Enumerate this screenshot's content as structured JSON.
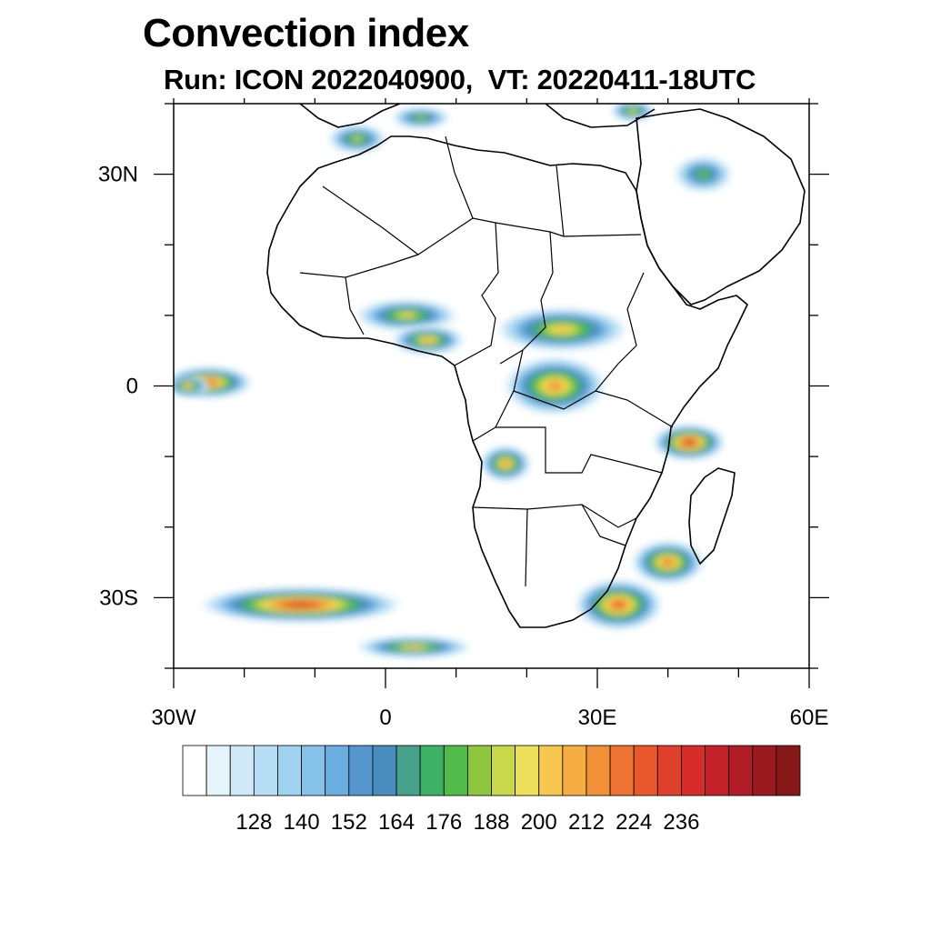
{
  "title": "Convection index",
  "subtitle": "Run: ICON 2022040900,  VT: 20220411-18UTC",
  "axes": {
    "lon_labels": [
      {
        "lon": -30,
        "text": "30W"
      },
      {
        "lon": 0,
        "text": "0"
      },
      {
        "lon": 30,
        "text": "30E"
      },
      {
        "lon": 60,
        "text": "60E"
      }
    ],
    "lat_labels": [
      {
        "lat": 30,
        "text": "30N"
      },
      {
        "lat": 0,
        "text": "0"
      },
      {
        "lat": -30,
        "text": "30S"
      }
    ],
    "lon_range": [
      -30,
      60
    ],
    "lat_range": [
      -40,
      40
    ]
  },
  "colorbar": {
    "colors": [
      "#ffffff",
      "#e6f4fc",
      "#cfe9f8",
      "#b7def4",
      "#9fd3f0",
      "#86c2e8",
      "#6aaedf",
      "#5596cf",
      "#4a8cbd",
      "#46a08a",
      "#3db266",
      "#52bb4c",
      "#8ec640",
      "#c8d84a",
      "#ede05a",
      "#f7c850",
      "#f6ad44",
      "#f29038",
      "#ee7231",
      "#e8582c",
      "#e0412a",
      "#d62d2b",
      "#c4222a",
      "#b01d26",
      "#9a1a20",
      "#861818"
    ],
    "labels": [
      "128",
      "140",
      "152",
      "164",
      "176",
      "188",
      "200",
      "212",
      "224",
      "236"
    ]
  },
  "convection_cells": [
    {
      "name": "atlantic-equatorial",
      "lon": -25,
      "lat": 0.5,
      "rx": 6,
      "ry": 2.2,
      "level": 20
    },
    {
      "name": "atlantic-equatorial-west",
      "lon": -28,
      "lat": 0,
      "rx": 3,
      "ry": 1.5,
      "level": 17
    },
    {
      "name": "gulf-of-guinea",
      "lon": 3,
      "lat": 10,
      "rx": 7,
      "ry": 2.2,
      "level": 15
    },
    {
      "name": "west-africa-sahel",
      "lon": 6,
      "lat": 6.5,
      "rx": 5,
      "ry": 2,
      "level": 17
    },
    {
      "name": "central-africa-north",
      "lon": 25,
      "lat": 8,
      "rx": 9,
      "ry": 3,
      "level": 16
    },
    {
      "name": "congo-basin",
      "lon": 24,
      "lat": 0,
      "rx": 7,
      "ry": 4,
      "level": 18
    },
    {
      "name": "angola-highlands",
      "lon": 17,
      "lat": -11,
      "rx": 3.5,
      "ry": 2.5,
      "level": 18
    },
    {
      "name": "east-africa-indian-ocean",
      "lon": 43,
      "lat": -8,
      "rx": 5,
      "ry": 2.5,
      "level": 22
    },
    {
      "name": "mozambique-channel",
      "lon": 40,
      "lat": -25,
      "rx": 5,
      "ry": 3,
      "level": 19
    },
    {
      "name": "south-africa-east",
      "lon": 33,
      "lat": -31,
      "rx": 6,
      "ry": 3.5,
      "level": 20
    },
    {
      "name": "south-atlantic-band",
      "lon": -12,
      "lat": -31,
      "rx": 14,
      "ry": 2.5,
      "level": 22
    },
    {
      "name": "south-atlantic-tail",
      "lon": 4,
      "lat": -37,
      "rx": 8,
      "ry": 1.5,
      "level": 16
    },
    {
      "name": "morocco-atlas",
      "lon": -4,
      "lat": 35,
      "rx": 4,
      "ry": 2,
      "level": 14
    },
    {
      "name": "arabia-north",
      "lon": 45,
      "lat": 30,
      "rx": 4,
      "ry": 2.5,
      "level": 12
    },
    {
      "name": "mediterranean-north",
      "lon": 5,
      "lat": 38,
      "rx": 4,
      "ry": 1.5,
      "level": 13
    },
    {
      "name": "levant",
      "lon": 35,
      "lat": 39,
      "rx": 3,
      "ry": 1.5,
      "level": 15
    }
  ]
}
